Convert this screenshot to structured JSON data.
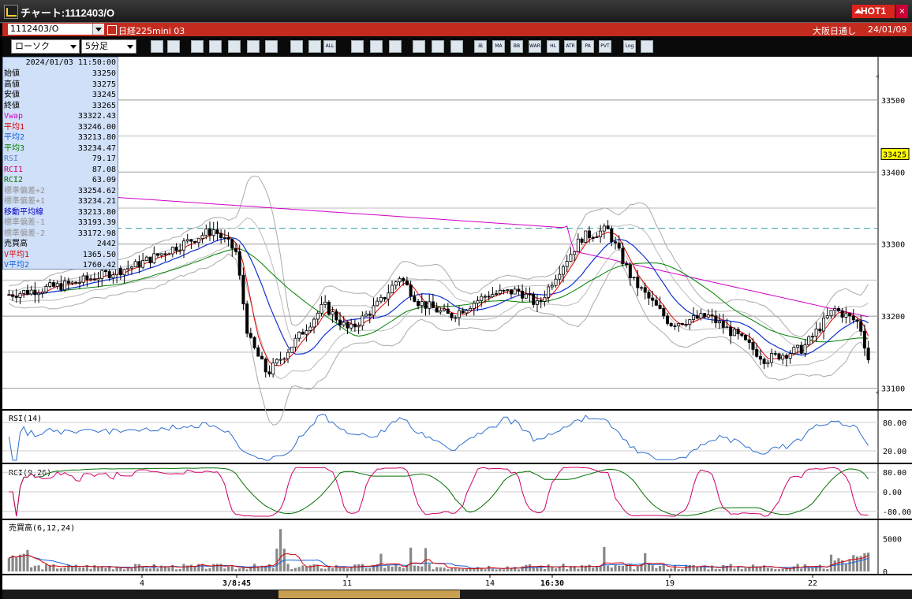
{
  "window": {
    "title": "チャート:1112403/O",
    "hot_label": "HOT1",
    "close_label": "×"
  },
  "infobar": {
    "symbol": "1112403/O",
    "product": "日経225mini 03",
    "exchange": "大阪日通し",
    "date": "24/01/09"
  },
  "toolbar": {
    "chart_type": "ローソク",
    "interval": "5分足",
    "buttons": [
      "zoom-icon",
      "table-icon",
      "tool-icon",
      "search-icon",
      "chart-icon",
      "bar-icon",
      "blank-icon",
      "left-icon",
      "right-icon",
      "all-icon",
      "pen-icon",
      "cursor-icon",
      "arrow-icon",
      "gear-icon",
      "wrench-icon",
      "palette-icon",
      "vol-icon",
      "ma-icon",
      "bb-icon",
      "ware-icon",
      "hl-icon",
      "atr-icon",
      "pa-icon",
      "pvt-icon",
      "log-icon",
      "tile-icon"
    ],
    "button_labels": {
      "all": "ALL",
      "vol": "出",
      "ma": "MA",
      "bb": "BB",
      "ware": "WARE",
      "hl": "HL",
      "atr": "ATR",
      "pa": "PA",
      "pvt": "PVT",
      "log": "Log"
    }
  },
  "info_panel": {
    "timestamp": "2024/01/03  11:50:00",
    "rows": [
      {
        "label": "始値",
        "value": "33250",
        "color": "#000000"
      },
      {
        "label": "高値",
        "value": "33275",
        "color": "#000000"
      },
      {
        "label": "安値",
        "value": "33245",
        "color": "#000000"
      },
      {
        "label": "終値",
        "value": "33265",
        "color": "#000000"
      },
      {
        "label": "Vwap",
        "value": "33322.43",
        "color": "#d000c8"
      },
      {
        "label": "平均1",
        "value": "33246.00",
        "color": "#d80000"
      },
      {
        "label": "平均2",
        "value": "33213.80",
        "color": "#1060e0"
      },
      {
        "label": "平均3",
        "value": "33234.47",
        "color": "#008000"
      },
      {
        "label": "RSI",
        "value": "79.17",
        "color": "#5a7ad0"
      },
      {
        "label": "RCI1",
        "value": "87.08",
        "color": "#d0006a"
      },
      {
        "label": "RCI2",
        "value": "63.09",
        "color": "#007000"
      },
      {
        "label": "標準偏差+2",
        "value": "33254.62",
        "color": "#909090"
      },
      {
        "label": "標準偏差+1",
        "value": "33234.21",
        "color": "#909090"
      },
      {
        "label": "移動平均線",
        "value": "33213.80",
        "color": "#0000c0"
      },
      {
        "label": "標準偏差-1",
        "value": "33193.39",
        "color": "#909090"
      },
      {
        "label": "標準偏差-2",
        "value": "33172.98",
        "color": "#909090"
      },
      {
        "label": "売買高",
        "value": "2442",
        "color": "#000000"
      },
      {
        "label": "V平均1",
        "value": "1365.50",
        "color": "#d80000"
      },
      {
        "label": "V平均2",
        "value": "1760.42",
        "color": "#1060e0"
      }
    ]
  },
  "chart_data": [
    {
      "type": "candlestick",
      "title": "",
      "ylim": [
        33070,
        33560
      ],
      "y_ticks": [
        "33500",
        "33400",
        "33300",
        "33200",
        "33100"
      ],
      "current_price": "33425",
      "x_tick_labels": [
        "4",
        "3/8:45",
        "11",
        "14",
        "16:30",
        "19",
        "22"
      ],
      "series": [
        {
          "name": "Vwap",
          "color": "#d000c8"
        },
        {
          "name": "平均1",
          "color": "#d80000"
        },
        {
          "name": "平均2",
          "color": "#1060e0"
        },
        {
          "name": "平均3",
          "color": "#008000"
        }
      ]
    },
    {
      "type": "line",
      "title": "RSI(14)",
      "ylim": [
        0,
        100
      ],
      "y_ticks": [
        "80.00",
        "20.00"
      ]
    },
    {
      "type": "line",
      "title": "RCI(9,26)",
      "ylim": [
        -100,
        100
      ],
      "y_ticks": [
        "80.00",
        "0.00",
        "-80.00"
      ]
    },
    {
      "type": "bar",
      "title": "売買高(6,12,24)",
      "ylim": [
        0,
        7500
      ],
      "y_ticks": [
        "5000",
        "0"
      ]
    }
  ]
}
